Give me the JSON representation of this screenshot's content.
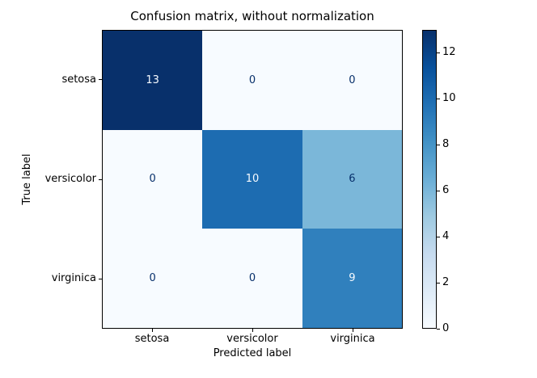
{
  "chart_data": {
    "type": "heatmap",
    "title": "Confusion matrix, without normalization",
    "xlabel": "Predicted label",
    "ylabel": "True label",
    "x_categories": [
      "setosa",
      "versicolor",
      "virginica"
    ],
    "y_categories": [
      "setosa",
      "versicolor",
      "virginica"
    ],
    "matrix": [
      [
        13,
        0,
        0
      ],
      [
        0,
        10,
        6
      ],
      [
        0,
        0,
        9
      ]
    ],
    "cells": [
      {
        "value": "13",
        "bg": "#08306b",
        "fg": "#f7fbff"
      },
      {
        "value": "0",
        "bg": "#f7fbff",
        "fg": "#08306b"
      },
      {
        "value": "0",
        "bg": "#f7fbff",
        "fg": "#08306b"
      },
      {
        "value": "0",
        "bg": "#f7fbff",
        "fg": "#08306b"
      },
      {
        "value": "10",
        "bg": "#1d6cb1",
        "fg": "#f7fbff"
      },
      {
        "value": "6",
        "bg": "#7bb7d9",
        "fg": "#08306b"
      },
      {
        "value": "0",
        "bg": "#f7fbff",
        "fg": "#08306b"
      },
      {
        "value": "0",
        "bg": "#f7fbff",
        "fg": "#08306b"
      },
      {
        "value": "9",
        "bg": "#3080bd",
        "fg": "#f7fbff"
      }
    ],
    "colorbar": {
      "colormap": "Blues",
      "min": 0,
      "max": 13,
      "ticks": [
        "0",
        "2",
        "4",
        "6",
        "8",
        "10",
        "12"
      ],
      "gradient_bottom_to_top": [
        "#f7fbff",
        "#deebf7",
        "#c6dbef",
        "#9ecae1",
        "#6baed6",
        "#4292c6",
        "#2171b5",
        "#08519c",
        "#08306b"
      ]
    },
    "grid": false,
    "legend": "colorbar-right"
  }
}
